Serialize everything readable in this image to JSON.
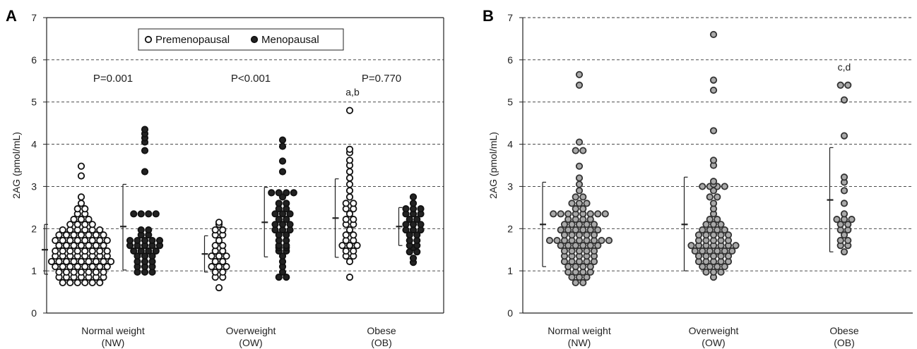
{
  "chart_data": [
    {
      "type": "scatter",
      "panel_label": "A",
      "ylabel": "2AG (pmol/mL)",
      "ylim": [
        0,
        7
      ],
      "yticks": [
        "0",
        "1",
        "2",
        "3",
        "4",
        "5",
        "6",
        "7"
      ],
      "grid": "horizontal dashed",
      "legend_position": "top-center",
      "categories": [
        {
          "line1": "Normal weight",
          "line2": "(NW)"
        },
        {
          "line1": "Overweight",
          "line2": "(OW)"
        },
        {
          "line1": "Obese",
          "line2": "(OB)"
        }
      ],
      "p_values": [
        "P=0.001",
        "P<0.001",
        "P=0.770"
      ],
      "annotations": [
        {
          "text": "a,b",
          "category": 2,
          "y": 5.15
        }
      ],
      "series": [
        {
          "name": "Premenopausal",
          "color": "#ffffff",
          "stroke": "#111111",
          "groups": [
            {
              "mean": 1.5,
              "sd_low": 0.92,
              "sd_high": 2.1,
              "values": [
                0.72,
                0.72,
                0.72,
                0.72,
                0.72,
                0.72,
                0.85,
                0.85,
                0.85,
                0.85,
                0.85,
                0.85,
                0.85,
                0.97,
                0.97,
                0.97,
                0.97,
                0.97,
                0.97,
                0.97,
                1.1,
                1.1,
                1.1,
                1.1,
                1.1,
                1.1,
                1.1,
                1.1,
                1.22,
                1.22,
                1.22,
                1.22,
                1.22,
                1.22,
                1.22,
                1.22,
                1.22,
                1.35,
                1.35,
                1.35,
                1.35,
                1.35,
                1.35,
                1.35,
                1.35,
                1.47,
                1.47,
                1.47,
                1.47,
                1.47,
                1.47,
                1.47,
                1.47,
                1.6,
                1.6,
                1.6,
                1.6,
                1.6,
                1.6,
                1.6,
                1.72,
                1.72,
                1.72,
                1.72,
                1.72,
                1.72,
                1.72,
                1.72,
                1.85,
                1.85,
                1.85,
                1.85,
                1.85,
                1.85,
                1.85,
                1.97,
                1.97,
                1.97,
                1.97,
                1.97,
                1.97,
                2.1,
                2.1,
                2.1,
                2.1,
                2.22,
                2.22,
                2.22,
                2.35,
                2.35,
                2.47,
                2.47,
                2.6,
                2.75,
                3.25,
                3.48
              ]
            },
            {
              "mean": 1.4,
              "sd_low": 0.97,
              "sd_high": 1.83,
              "values": [
                0.6,
                0.85,
                0.85,
                0.97,
                0.97,
                1.1,
                1.1,
                1.1,
                1.22,
                1.22,
                1.35,
                1.35,
                1.35,
                1.47,
                1.47,
                1.6,
                1.6,
                1.72,
                1.85,
                1.85,
                1.97,
                1.97,
                2.1,
                2.15
              ]
            },
            {
              "mean": 2.25,
              "sd_low": 1.32,
              "sd_high": 3.18,
              "values": [
                0.85,
                1.22,
                1.35,
                1.35,
                1.47,
                1.47,
                1.6,
                1.6,
                1.6,
                1.72,
                1.72,
                1.85,
                1.85,
                1.97,
                2.1,
                2.1,
                2.22,
                2.22,
                2.35,
                2.47,
                2.47,
                2.6,
                2.6,
                2.75,
                2.9,
                3.05,
                3.2,
                3.35,
                3.5,
                3.62,
                3.8,
                3.88,
                4.8
              ]
            }
          ]
        },
        {
          "name": "Menopausal",
          "color": "#222222",
          "stroke": "#111111",
          "groups": [
            {
              "mean": 2.05,
              "sd_low": 1.02,
              "sd_high": 3.05,
              "values": [
                0.97,
                0.97,
                0.97,
                1.1,
                1.1,
                1.1,
                1.22,
                1.22,
                1.22,
                1.35,
                1.35,
                1.35,
                1.47,
                1.47,
                1.47,
                1.47,
                1.6,
                1.6,
                1.6,
                1.6,
                1.6,
                1.72,
                1.72,
                1.72,
                1.72,
                1.72,
                1.85,
                1.85,
                1.97,
                1.97,
                2.35,
                2.35,
                2.35,
                2.35,
                3.35,
                3.85,
                4.05,
                4.15,
                4.25,
                4.35
              ]
            },
            {
              "mean": 2.15,
              "sd_low": 1.33,
              "sd_high": 2.98,
              "values": [
                0.85,
                0.85,
                0.97,
                1.1,
                1.22,
                1.35,
                1.47,
                1.47,
                1.55,
                1.55,
                1.6,
                1.6,
                1.72,
                1.72,
                1.85,
                1.85,
                1.97,
                1.97,
                1.97,
                2.1,
                2.1,
                2.1,
                2.22,
                2.22,
                2.35,
                2.35,
                2.35,
                2.47,
                2.47,
                2.6,
                2.6,
                2.75,
                2.85,
                2.85,
                2.85,
                2.85,
                3.35,
                3.6,
                3.95,
                4.1
              ]
            },
            {
              "mean": 2.05,
              "sd_low": 1.6,
              "sd_high": 2.5,
              "values": [
                1.2,
                1.3,
                1.45,
                1.45,
                1.55,
                1.6,
                1.6,
                1.72,
                1.72,
                1.85,
                1.85,
                1.97,
                1.97,
                1.97,
                2.1,
                2.1,
                2.1,
                2.22,
                2.22,
                2.35,
                2.35,
                2.35,
                2.47,
                2.47,
                2.47,
                2.6,
                2.75
              ]
            }
          ]
        }
      ]
    },
    {
      "type": "scatter",
      "panel_label": "B",
      "ylabel": "2AG (pmol/mL)",
      "ylim": [
        0,
        7
      ],
      "yticks": [
        "0",
        "1",
        "2",
        "3",
        "4",
        "5",
        "6",
        "7"
      ],
      "grid": "horizontal dashed",
      "categories": [
        {
          "line1": "Normal weight",
          "line2": "(NW)"
        },
        {
          "line1": "Overweight",
          "line2": "(OW)"
        },
        {
          "line1": "Obese",
          "line2": "(OB)"
        }
      ],
      "annotations": [
        {
          "text": "c,d",
          "category": 2,
          "y": 5.75
        }
      ],
      "series": [
        {
          "name": "",
          "color": "#a9a9a9",
          "stroke": "#333333",
          "groups": [
            {
              "mean": 2.1,
              "sd_low": 1.1,
              "sd_high": 3.1,
              "values": [
                0.72,
                0.72,
                0.85,
                0.85,
                0.85,
                0.97,
                0.97,
                0.97,
                0.97,
                1.1,
                1.1,
                1.1,
                1.1,
                1.22,
                1.22,
                1.22,
                1.22,
                1.22,
                1.35,
                1.35,
                1.35,
                1.35,
                1.35,
                1.47,
                1.47,
                1.47,
                1.47,
                1.47,
                1.6,
                1.6,
                1.6,
                1.6,
                1.6,
                1.6,
                1.72,
                1.72,
                1.72,
                1.72,
                1.72,
                1.72,
                1.72,
                1.72,
                1.72,
                1.85,
                1.85,
                1.85,
                1.85,
                1.85,
                1.97,
                1.97,
                1.97,
                1.97,
                1.97,
                1.97,
                2.1,
                2.1,
                2.1,
                2.1,
                2.1,
                2.22,
                2.22,
                2.22,
                2.22,
                2.35,
                2.35,
                2.35,
                2.35,
                2.35,
                2.35,
                2.35,
                2.35,
                2.47,
                2.47,
                2.6,
                2.6,
                2.6,
                2.75,
                2.75,
                2.9,
                3.05,
                3.2,
                3.48,
                3.85,
                3.85,
                4.05,
                5.4,
                5.65
              ]
            },
            {
              "mean": 2.1,
              "sd_low": 1.0,
              "sd_high": 3.22,
              "values": [
                0.85,
                0.97,
                0.97,
                0.97,
                1.1,
                1.1,
                1.1,
                1.1,
                1.22,
                1.22,
                1.22,
                1.22,
                1.22,
                1.35,
                1.35,
                1.35,
                1.35,
                1.35,
                1.47,
                1.47,
                1.47,
                1.47,
                1.47,
                1.47,
                1.6,
                1.6,
                1.6,
                1.6,
                1.6,
                1.6,
                1.6,
                1.72,
                1.72,
                1.72,
                1.72,
                1.72,
                1.85,
                1.85,
                1.85,
                1.85,
                1.85,
                1.97,
                1.97,
                1.97,
                1.97,
                2.1,
                2.1,
                2.1,
                2.22,
                2.22,
                2.35,
                2.47,
                2.6,
                2.75,
                2.75,
                2.9,
                3.0,
                3.0,
                3.0,
                3.0,
                3.05,
                3.12,
                3.5,
                3.62,
                4.32,
                5.28,
                5.52,
                6.6
              ]
            },
            {
              "mean": 2.68,
              "sd_low": 1.45,
              "sd_high": 3.92,
              "values": [
                1.45,
                1.6,
                1.6,
                1.72,
                1.72,
                1.85,
                1.97,
                1.97,
                2.1,
                2.1,
                2.22,
                2.22,
                2.22,
                2.35,
                2.6,
                2.9,
                3.1,
                3.22,
                4.2,
                5.05,
                5.4,
                5.4
              ]
            }
          ]
        }
      ]
    }
  ]
}
